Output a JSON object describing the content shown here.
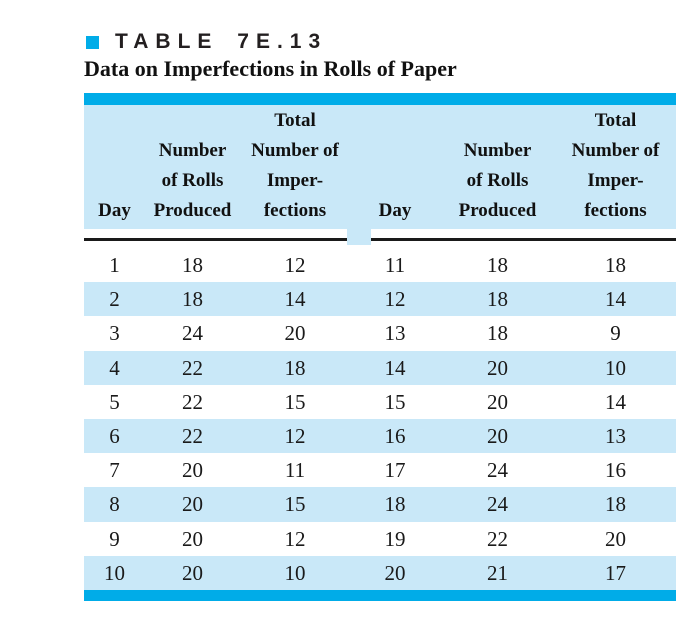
{
  "page": {
    "title_tag": "TABLE 7E.13",
    "subtitle": "Data on Imperfections in Rolls of Paper"
  },
  "colors": {
    "accent_cyan": "#00ace8",
    "light_blue": "#c9e8f8",
    "text_dark": "#231f20"
  },
  "table": {
    "header": {
      "day": "Day",
      "rolls": [
        "Number",
        "of Rolls",
        "Produced"
      ],
      "imperfections": [
        "Total",
        "Number of",
        "Imper-",
        "fections"
      ]
    },
    "rows": [
      [
        "1",
        "18",
        "12",
        "11",
        "18",
        "18"
      ],
      [
        "2",
        "18",
        "14",
        "12",
        "18",
        "14"
      ],
      [
        "3",
        "24",
        "20",
        "13",
        "18",
        "9"
      ],
      [
        "4",
        "22",
        "18",
        "14",
        "20",
        "10"
      ],
      [
        "5",
        "22",
        "15",
        "15",
        "20",
        "14"
      ],
      [
        "6",
        "22",
        "12",
        "16",
        "20",
        "13"
      ],
      [
        "7",
        "20",
        "11",
        "17",
        "24",
        "16"
      ],
      [
        "8",
        "20",
        "15",
        "18",
        "24",
        "18"
      ],
      [
        "9",
        "20",
        "12",
        "19",
        "22",
        "20"
      ],
      [
        "10",
        "20",
        "10",
        "20",
        "21",
        "17"
      ]
    ]
  }
}
